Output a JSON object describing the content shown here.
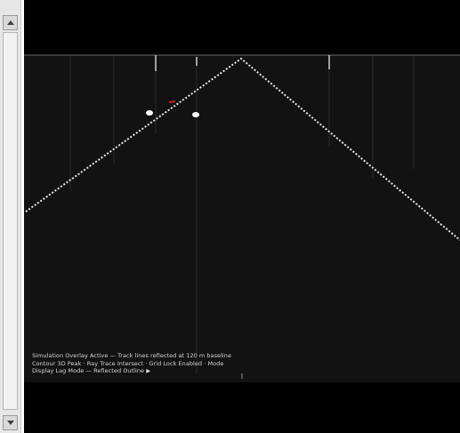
{
  "scrollbar": {
    "up_icon": "arrow-up-icon",
    "down_icon": "arrow-down-icon"
  },
  "video": {
    "background": "#000000",
    "frame_color": "#121212",
    "line_color": "#e8e8e8",
    "marker_color": "#cc2020",
    "caption_lines": [
      "Simulation Overlay Active — Track lines reflected at 120 m baseline",
      "Contour 3D Peak · Ray Trace Intersect · Grid Lock Enabled · Mode",
      "Display Lag Mode — Reflected Outline ▶"
    ]
  }
}
